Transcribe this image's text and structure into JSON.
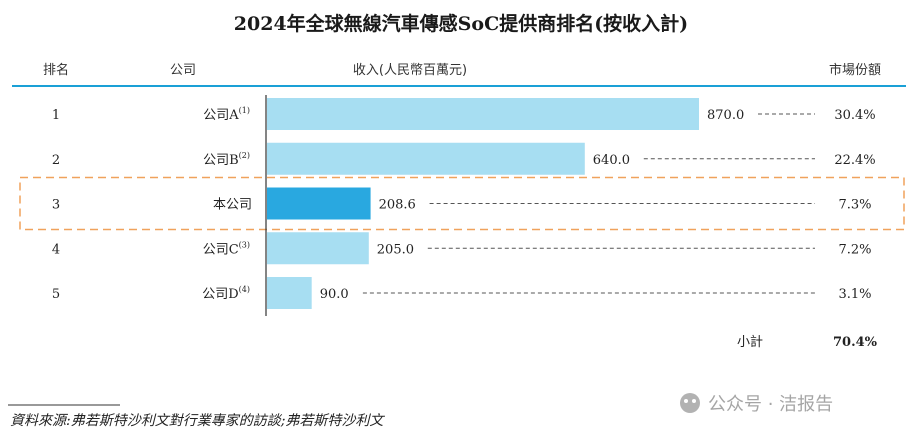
{
  "chart_data": {
    "type": "bar",
    "orientation": "horizontal",
    "title": "2024年全球無線汽車傳感SoC提供商排名(按收入計)",
    "headers": {
      "rank": "排名",
      "company": "公司",
      "revenue": "收入(人民幣百萬元)",
      "share": "市場份額"
    },
    "rows": [
      {
        "rank": "1",
        "company": "公司A",
        "note": "(1)",
        "value": 870.0,
        "value_label": "870.0",
        "share": "30.4%",
        "highlight": false
      },
      {
        "rank": "2",
        "company": "公司B",
        "note": "(2)",
        "value": 640.0,
        "value_label": "640.0",
        "share": "22.4%",
        "highlight": false
      },
      {
        "rank": "3",
        "company": "本公司",
        "note": "",
        "value": 208.6,
        "value_label": "208.6",
        "share": "7.3%",
        "highlight": true
      },
      {
        "rank": "4",
        "company": "公司C",
        "note": "(3)",
        "value": 205.0,
        "value_label": "205.0",
        "share": "7.2%",
        "highlight": false
      },
      {
        "rank": "5",
        "company": "公司D",
        "note": "(4)",
        "value": 90.0,
        "value_label": "90.0",
        "share": "3.1%",
        "highlight": false
      }
    ],
    "total": {
      "label": "小計",
      "value": "70.4%"
    },
    "xlim": [
      0,
      870
    ],
    "colors": {
      "bar": "#a7def2",
      "highlight_bar": "#29a8e0",
      "highlight_box": "#f0a25c",
      "header_line": "#1aa0d6"
    }
  },
  "source": "資料來源:弗若斯特沙利文對行業專家的訪談;弗若斯特沙利文",
  "watermark": "公众号 · 洁报告"
}
